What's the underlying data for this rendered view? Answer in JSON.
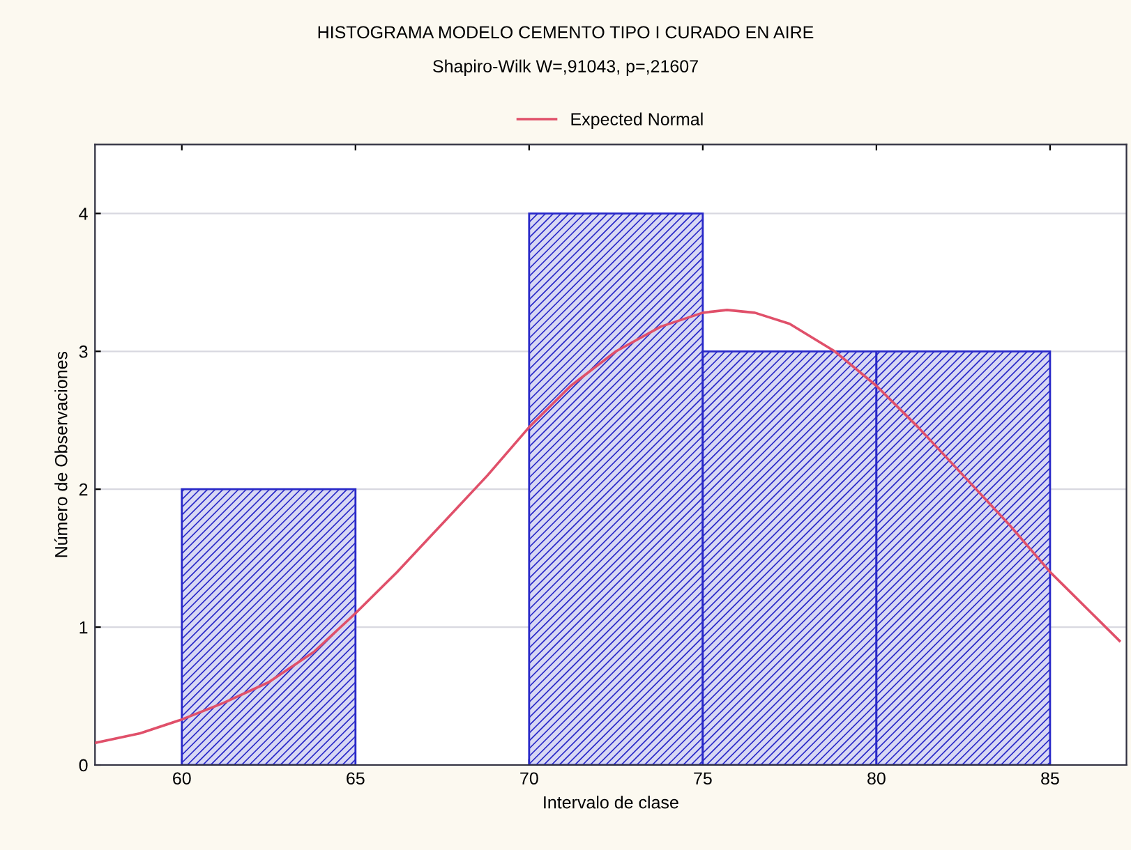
{
  "chart_data": {
    "type": "histogram",
    "title": "HISTOGRAMA MODELO CEMENTO TIPO I CURADO EN AIRE",
    "subtitle": "Shapiro-Wilk W=,91043, p=,21607",
    "xlabel": "Intervalo de clase",
    "ylabel": "Número de Observaciones",
    "bins": [
      60,
      65,
      70,
      75,
      80,
      85
    ],
    "values": [
      2,
      0,
      4,
      3,
      3
    ],
    "color": "#2828c8",
    "series": [
      {
        "type": "line",
        "name": "Expected Normal",
        "color": "#e0506a",
        "x": [
          57.5,
          58.8,
          60,
          61.2,
          62.5,
          63.8,
          65,
          66.2,
          67.5,
          68.8,
          70,
          71.2,
          72.5,
          73.8,
          75,
          75.7,
          76.5,
          77.5,
          78.8,
          80,
          81.2,
          82.5,
          83.8,
          85,
          86.2,
          87
        ],
        "values": [
          0.16,
          0.23,
          0.33,
          0.45,
          0.6,
          0.82,
          1.1,
          1.4,
          1.75,
          2.1,
          2.45,
          2.75,
          3.0,
          3.18,
          3.28,
          3.3,
          3.28,
          3.2,
          3.0,
          2.75,
          2.45,
          2.1,
          1.75,
          1.4,
          1.1,
          0.9
        ]
      }
    ],
    "xlim": [
      57.5,
      87.2
    ],
    "xticks": [
      60,
      65,
      70,
      75,
      80,
      85
    ],
    "ylim": [
      0,
      4.5
    ],
    "yticks": [
      0,
      1,
      2,
      3,
      4
    ],
    "grid": "y",
    "legend": "top"
  }
}
